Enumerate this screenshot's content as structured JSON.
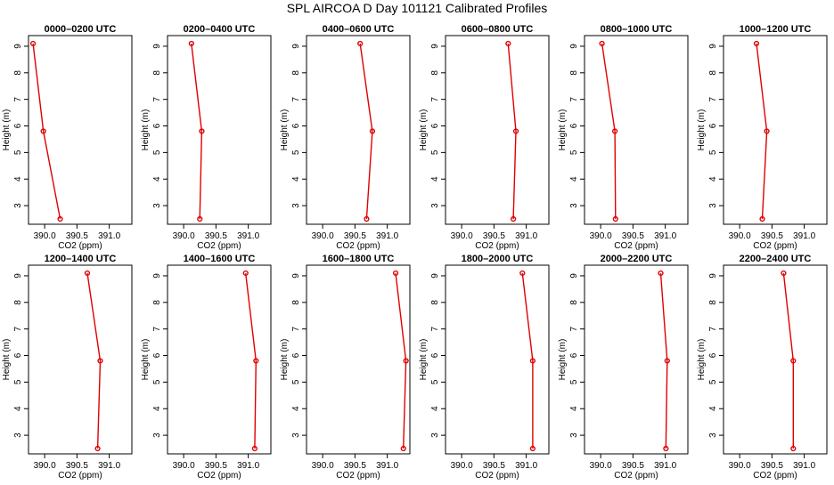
{
  "figure_title": "SPL AIRCOA D  Day 101121  Calibrated Profiles",
  "chart_data": [
    {
      "type": "line",
      "title": "0000–0200 UTC",
      "xlabel": "CO2 (ppm)",
      "ylabel": "Height (m)",
      "xlim": [
        389.75,
        391.35
      ],
      "ylim": [
        2.3,
        9.4
      ],
      "x_ticks": [
        "390.0",
        "390.5",
        "391.0"
      ],
      "x_tick_values": [
        390.0,
        390.5,
        391.0
      ],
      "y_ticks": [
        "3",
        "4",
        "5",
        "6",
        "7",
        "8",
        "9"
      ],
      "y_tick_values": [
        3,
        4,
        5,
        6,
        7,
        8,
        9
      ],
      "series": [
        {
          "x": [
            389.82,
            389.98,
            390.24
          ],
          "y": [
            9.1,
            5.8,
            2.5
          ],
          "color": "#e00000"
        }
      ]
    },
    {
      "type": "line",
      "title": "0200–0400 UTC",
      "xlabel": "CO2 (ppm)",
      "ylabel": "Height (m)",
      "xlim": [
        389.75,
        391.35
      ],
      "ylim": [
        2.3,
        9.4
      ],
      "x_ticks": [
        "390.0",
        "390.5",
        "391.0"
      ],
      "x_tick_values": [
        390.0,
        390.5,
        391.0
      ],
      "y_ticks": [
        "3",
        "4",
        "5",
        "6",
        "7",
        "8",
        "9"
      ],
      "y_tick_values": [
        3,
        4,
        5,
        6,
        7,
        8,
        9
      ],
      "series": [
        {
          "x": [
            390.12,
            390.28,
            390.25
          ],
          "y": [
            9.1,
            5.8,
            2.5
          ],
          "color": "#e00000"
        }
      ]
    },
    {
      "type": "line",
      "title": "0400–0600 UTC",
      "xlabel": "CO2 (ppm)",
      "ylabel": "Height (m)",
      "xlim": [
        389.75,
        391.35
      ],
      "ylim": [
        2.3,
        9.4
      ],
      "x_ticks": [
        "390.0",
        "390.5",
        "391.0"
      ],
      "x_tick_values": [
        390.0,
        390.5,
        391.0
      ],
      "y_ticks": [
        "3",
        "4",
        "5",
        "6",
        "7",
        "8",
        "9"
      ],
      "y_tick_values": [
        3,
        4,
        5,
        6,
        7,
        8,
        9
      ],
      "series": [
        {
          "x": [
            390.58,
            390.77,
            390.68
          ],
          "y": [
            9.1,
            5.8,
            2.5
          ],
          "color": "#e00000"
        }
      ]
    },
    {
      "type": "line",
      "title": "0600–0800 UTC",
      "xlabel": "CO2 (ppm)",
      "ylabel": "Height (m)",
      "xlim": [
        389.75,
        391.35
      ],
      "ylim": [
        2.3,
        9.4
      ],
      "x_ticks": [
        "390.0",
        "390.5",
        "391.0"
      ],
      "x_tick_values": [
        390.0,
        390.5,
        391.0
      ],
      "y_ticks": [
        "3",
        "4",
        "5",
        "6",
        "7",
        "8",
        "9"
      ],
      "y_tick_values": [
        3,
        4,
        5,
        6,
        7,
        8,
        9
      ],
      "series": [
        {
          "x": [
            390.72,
            390.84,
            390.8
          ],
          "y": [
            9.1,
            5.8,
            2.5
          ],
          "color": "#e00000"
        }
      ]
    },
    {
      "type": "line",
      "title": "0800–1000 UTC",
      "xlabel": "CO2 (ppm)",
      "ylabel": "Height (m)",
      "xlim": [
        389.75,
        391.35
      ],
      "ylim": [
        2.3,
        9.4
      ],
      "x_ticks": [
        "390.0",
        "390.5",
        "391.0"
      ],
      "x_tick_values": [
        390.0,
        390.5,
        391.0
      ],
      "y_ticks": [
        "3",
        "4",
        "5",
        "6",
        "7",
        "8",
        "9"
      ],
      "y_tick_values": [
        3,
        4,
        5,
        6,
        7,
        8,
        9
      ],
      "series": [
        {
          "x": [
            390.02,
            390.22,
            390.23
          ],
          "y": [
            9.1,
            5.8,
            2.5
          ],
          "color": "#e00000"
        }
      ]
    },
    {
      "type": "line",
      "title": "1000–1200 UTC",
      "xlabel": "CO2 (ppm)",
      "ylabel": "Height (m)",
      "xlim": [
        389.75,
        391.35
      ],
      "ylim": [
        2.3,
        9.4
      ],
      "x_ticks": [
        "390.0",
        "390.5",
        "391.0"
      ],
      "x_tick_values": [
        390.0,
        390.5,
        391.0
      ],
      "y_ticks": [
        "3",
        "4",
        "5",
        "6",
        "7",
        "8",
        "9"
      ],
      "y_tick_values": [
        3,
        4,
        5,
        6,
        7,
        8,
        9
      ],
      "series": [
        {
          "x": [
            390.26,
            390.42,
            390.35
          ],
          "y": [
            9.1,
            5.8,
            2.5
          ],
          "color": "#e00000"
        }
      ]
    },
    {
      "type": "line",
      "title": "1200–1400 UTC",
      "xlabel": "CO2 (ppm)",
      "ylabel": "Height (m)",
      "xlim": [
        389.75,
        391.35
      ],
      "ylim": [
        2.3,
        9.4
      ],
      "x_ticks": [
        "390.0",
        "390.5",
        "391.0"
      ],
      "x_tick_values": [
        390.0,
        390.5,
        391.0
      ],
      "y_ticks": [
        "3",
        "4",
        "5",
        "6",
        "7",
        "8",
        "9"
      ],
      "y_tick_values": [
        3,
        4,
        5,
        6,
        7,
        8,
        9
      ],
      "series": [
        {
          "x": [
            390.66,
            390.86,
            390.82
          ],
          "y": [
            9.1,
            5.8,
            2.5
          ],
          "color": "#e00000"
        }
      ]
    },
    {
      "type": "line",
      "title": "1400–1600 UTC",
      "xlabel": "CO2 (ppm)",
      "ylabel": "Height (m)",
      "xlim": [
        389.75,
        391.35
      ],
      "ylim": [
        2.3,
        9.4
      ],
      "x_ticks": [
        "390.0",
        "390.5",
        "391.0"
      ],
      "x_tick_values": [
        390.0,
        390.5,
        391.0
      ],
      "y_ticks": [
        "3",
        "4",
        "5",
        "6",
        "7",
        "8",
        "9"
      ],
      "y_tick_values": [
        3,
        4,
        5,
        6,
        7,
        8,
        9
      ],
      "series": [
        {
          "x": [
            390.96,
            391.12,
            391.1
          ],
          "y": [
            9.1,
            5.8,
            2.5
          ],
          "color": "#e00000"
        }
      ]
    },
    {
      "type": "line",
      "title": "1600–1800 UTC",
      "xlabel": "CO2 (ppm)",
      "ylabel": "Height (m)",
      "xlim": [
        389.75,
        391.35
      ],
      "ylim": [
        2.3,
        9.4
      ],
      "x_ticks": [
        "390.0",
        "390.5",
        "391.0"
      ],
      "x_tick_values": [
        390.0,
        390.5,
        391.0
      ],
      "y_ticks": [
        "3",
        "4",
        "5",
        "6",
        "7",
        "8",
        "9"
      ],
      "y_tick_values": [
        3,
        4,
        5,
        6,
        7,
        8,
        9
      ],
      "series": [
        {
          "x": [
            391.13,
            391.29,
            391.25
          ],
          "y": [
            9.1,
            5.8,
            2.5
          ],
          "color": "#e00000"
        }
      ]
    },
    {
      "type": "line",
      "title": "1800–2000 UTC",
      "xlabel": "CO2 (ppm)",
      "ylabel": "Height (m)",
      "xlim": [
        389.75,
        391.35
      ],
      "ylim": [
        2.3,
        9.4
      ],
      "x_ticks": [
        "390.0",
        "390.5",
        "391.0"
      ],
      "x_tick_values": [
        390.0,
        390.5,
        391.0
      ],
      "y_ticks": [
        "3",
        "4",
        "5",
        "6",
        "7",
        "8",
        "9"
      ],
      "y_tick_values": [
        3,
        4,
        5,
        6,
        7,
        8,
        9
      ],
      "series": [
        {
          "x": [
            390.94,
            391.1,
            391.1
          ],
          "y": [
            9.1,
            5.8,
            2.5
          ],
          "color": "#e00000"
        }
      ]
    },
    {
      "type": "line",
      "title": "2000–2200 UTC",
      "xlabel": "CO2 (ppm)",
      "ylabel": "Height (m)",
      "xlim": [
        389.75,
        391.35
      ],
      "ylim": [
        2.3,
        9.4
      ],
      "x_ticks": [
        "390.0",
        "390.5",
        "391.0"
      ],
      "x_tick_values": [
        390.0,
        390.5,
        391.0
      ],
      "y_ticks": [
        "3",
        "4",
        "5",
        "6",
        "7",
        "8",
        "9"
      ],
      "y_tick_values": [
        3,
        4,
        5,
        6,
        7,
        8,
        9
      ],
      "series": [
        {
          "x": [
            390.93,
            391.03,
            391.01
          ],
          "y": [
            9.1,
            5.8,
            2.5
          ],
          "color": "#e00000"
        }
      ]
    },
    {
      "type": "line",
      "title": "2200–2400 UTC",
      "xlabel": "CO2 (ppm)",
      "ylabel": "Height (m)",
      "xlim": [
        389.75,
        391.35
      ],
      "ylim": [
        2.3,
        9.4
      ],
      "x_ticks": [
        "390.0",
        "390.5",
        "391.0"
      ],
      "x_tick_values": [
        390.0,
        390.5,
        391.0
      ],
      "y_ticks": [
        "3",
        "4",
        "5",
        "6",
        "7",
        "8",
        "9"
      ],
      "y_tick_values": [
        3,
        4,
        5,
        6,
        7,
        8,
        9
      ],
      "series": [
        {
          "x": [
            390.68,
            390.83,
            390.83
          ],
          "y": [
            9.1,
            5.8,
            2.5
          ],
          "color": "#e00000"
        }
      ]
    }
  ]
}
